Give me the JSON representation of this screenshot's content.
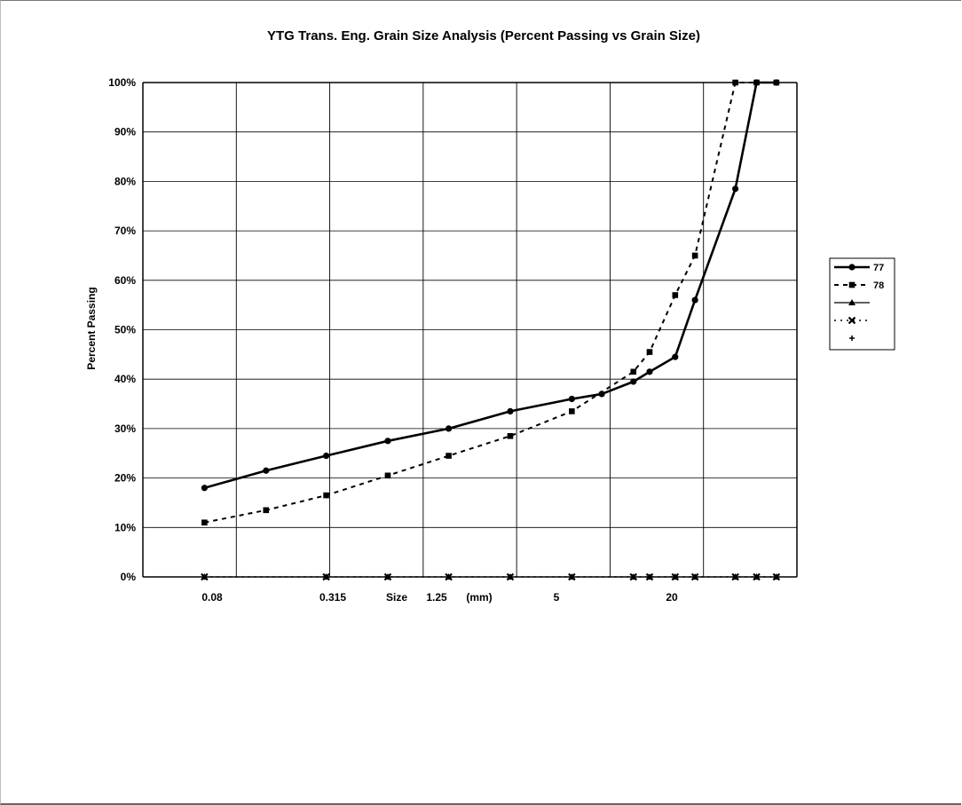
{
  "chart_data": {
    "type": "line",
    "title": "YTG Trans. Eng. Grain Size Analysis (Percent Passing vs Grain Size)",
    "xlabel": "Size (mm)",
    "ylabel": "Percent Passing",
    "ylim": [
      0,
      100
    ],
    "y_ticks": [
      "0%",
      "10%",
      "20%",
      "30%",
      "40%",
      "50%",
      "60%",
      "70%",
      "80%",
      "90%",
      "100%"
    ],
    "x_tick_labels": [
      "0.08",
      "0.315",
      "Size",
      "1.25",
      "(mm)",
      "5",
      "20"
    ],
    "x_scale": "log",
    "x_range": [
      0.04,
      63
    ],
    "grid": true,
    "legend_position": "right",
    "legend": [
      "77",
      "78",
      "",
      "",
      ""
    ],
    "series": [
      {
        "name": "77",
        "style": "solid-thick-diamond",
        "x": [
          0.08,
          0.16,
          0.315,
          0.63,
          1.25,
          2.5,
          5,
          7,
          10,
          12,
          16,
          20,
          31.5,
          40,
          50
        ],
        "y": [
          18,
          21.5,
          24.5,
          27.5,
          30,
          33.5,
          36,
          37,
          39.5,
          41.5,
          44.5,
          56,
          78.5,
          100,
          100
        ]
      },
      {
        "name": "78",
        "style": "dashed-square",
        "x": [
          0.08,
          0.16,
          0.315,
          0.63,
          1.25,
          2.5,
          5,
          10,
          12,
          16,
          20,
          31.5,
          40,
          50
        ],
        "y": [
          11,
          13.5,
          16.5,
          20.5,
          24.5,
          28.5,
          33.5,
          41.5,
          45.5,
          57,
          65,
          100,
          100,
          100
        ]
      },
      {
        "name": "",
        "style": "thin-triangle",
        "x": [
          0.08,
          0.315,
          0.63,
          1.25,
          2.5,
          5,
          10,
          12,
          16,
          20,
          31.5,
          40,
          50
        ],
        "y": [
          0,
          0,
          0,
          0,
          0,
          0,
          0,
          0,
          0,
          0,
          0,
          0,
          0
        ]
      },
      {
        "name": "",
        "style": "dotted-x",
        "x": [
          0.08,
          0.315,
          0.63,
          1.25,
          2.5,
          5,
          10,
          12,
          16,
          20,
          31.5,
          40,
          50
        ],
        "y": [
          0,
          0,
          0,
          0,
          0,
          0,
          0,
          0,
          0,
          0,
          0,
          0,
          0
        ]
      },
      {
        "name": "",
        "style": "plus-only",
        "x": [],
        "y": []
      }
    ]
  },
  "colors": {
    "line": "#000000",
    "grid": "#000000",
    "border": "#000000"
  }
}
